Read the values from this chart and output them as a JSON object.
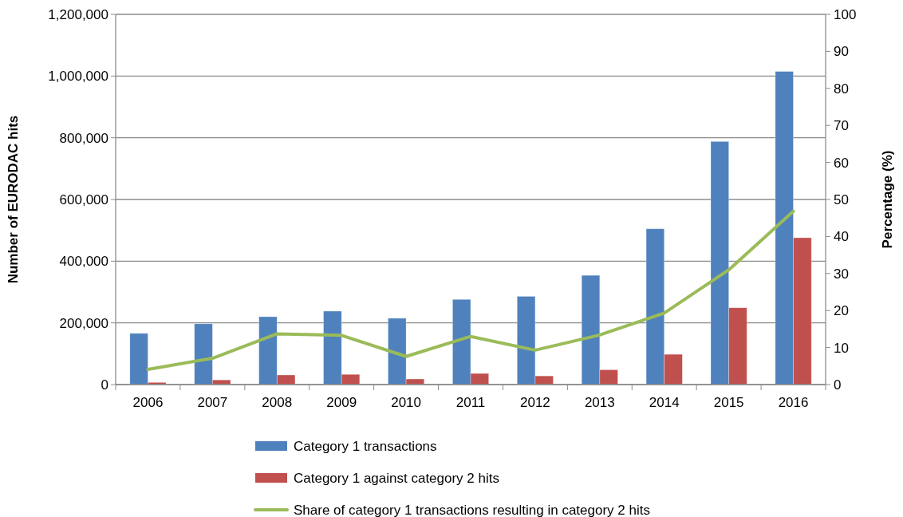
{
  "chart_data": {
    "type": "bar",
    "ylabel": "Number of EURODAC hits",
    "y2label": "Percentage (%)",
    "categories": [
      "2006",
      "2007",
      "2008",
      "2009",
      "2010",
      "2011",
      "2012",
      "2013",
      "2014",
      "2015",
      "2016"
    ],
    "series": [
      {
        "name": "Category 1 transactions",
        "color": "#4f81bd",
        "values": [
          166000,
          197000,
          220000,
          238000,
          215000,
          276000,
          286000,
          354000,
          505000,
          788000,
          1015000
        ]
      },
      {
        "name": "Category 1 against category 2 hits",
        "color": "#c0504d",
        "values": [
          7000,
          15000,
          31000,
          33000,
          18000,
          36000,
          28000,
          48000,
          98000,
          249000,
          476000
        ]
      },
      {
        "name": "Share of category 1 transactions resulting in category 2 hits",
        "type": "line",
        "axis": "y2",
        "color": "#9bbb59",
        "values": [
          4.1,
          7.1,
          13.7,
          13.3,
          7.6,
          13.0,
          9.3,
          13.4,
          19.3,
          31.0,
          46.8
        ]
      }
    ],
    "ylim": [
      0,
      1200000
    ],
    "yticks": [
      {
        "value": 0,
        "label": "0"
      },
      {
        "value": 200000,
        "label": "200,000"
      },
      {
        "value": 400000,
        "label": "400,000"
      },
      {
        "value": 600000,
        "label": "600,000"
      },
      {
        "value": 800000,
        "label": "800,000"
      },
      {
        "value": 1000000,
        "label": "1,000,000"
      },
      {
        "value": 1200000,
        "label": "1,200,000"
      }
    ],
    "y2lim": [
      0,
      100
    ],
    "y2ticks": [
      0,
      10,
      20,
      30,
      40,
      50,
      60,
      70,
      80,
      90,
      100
    ],
    "grid": "y",
    "legend": "bottom",
    "marker": "none"
  }
}
